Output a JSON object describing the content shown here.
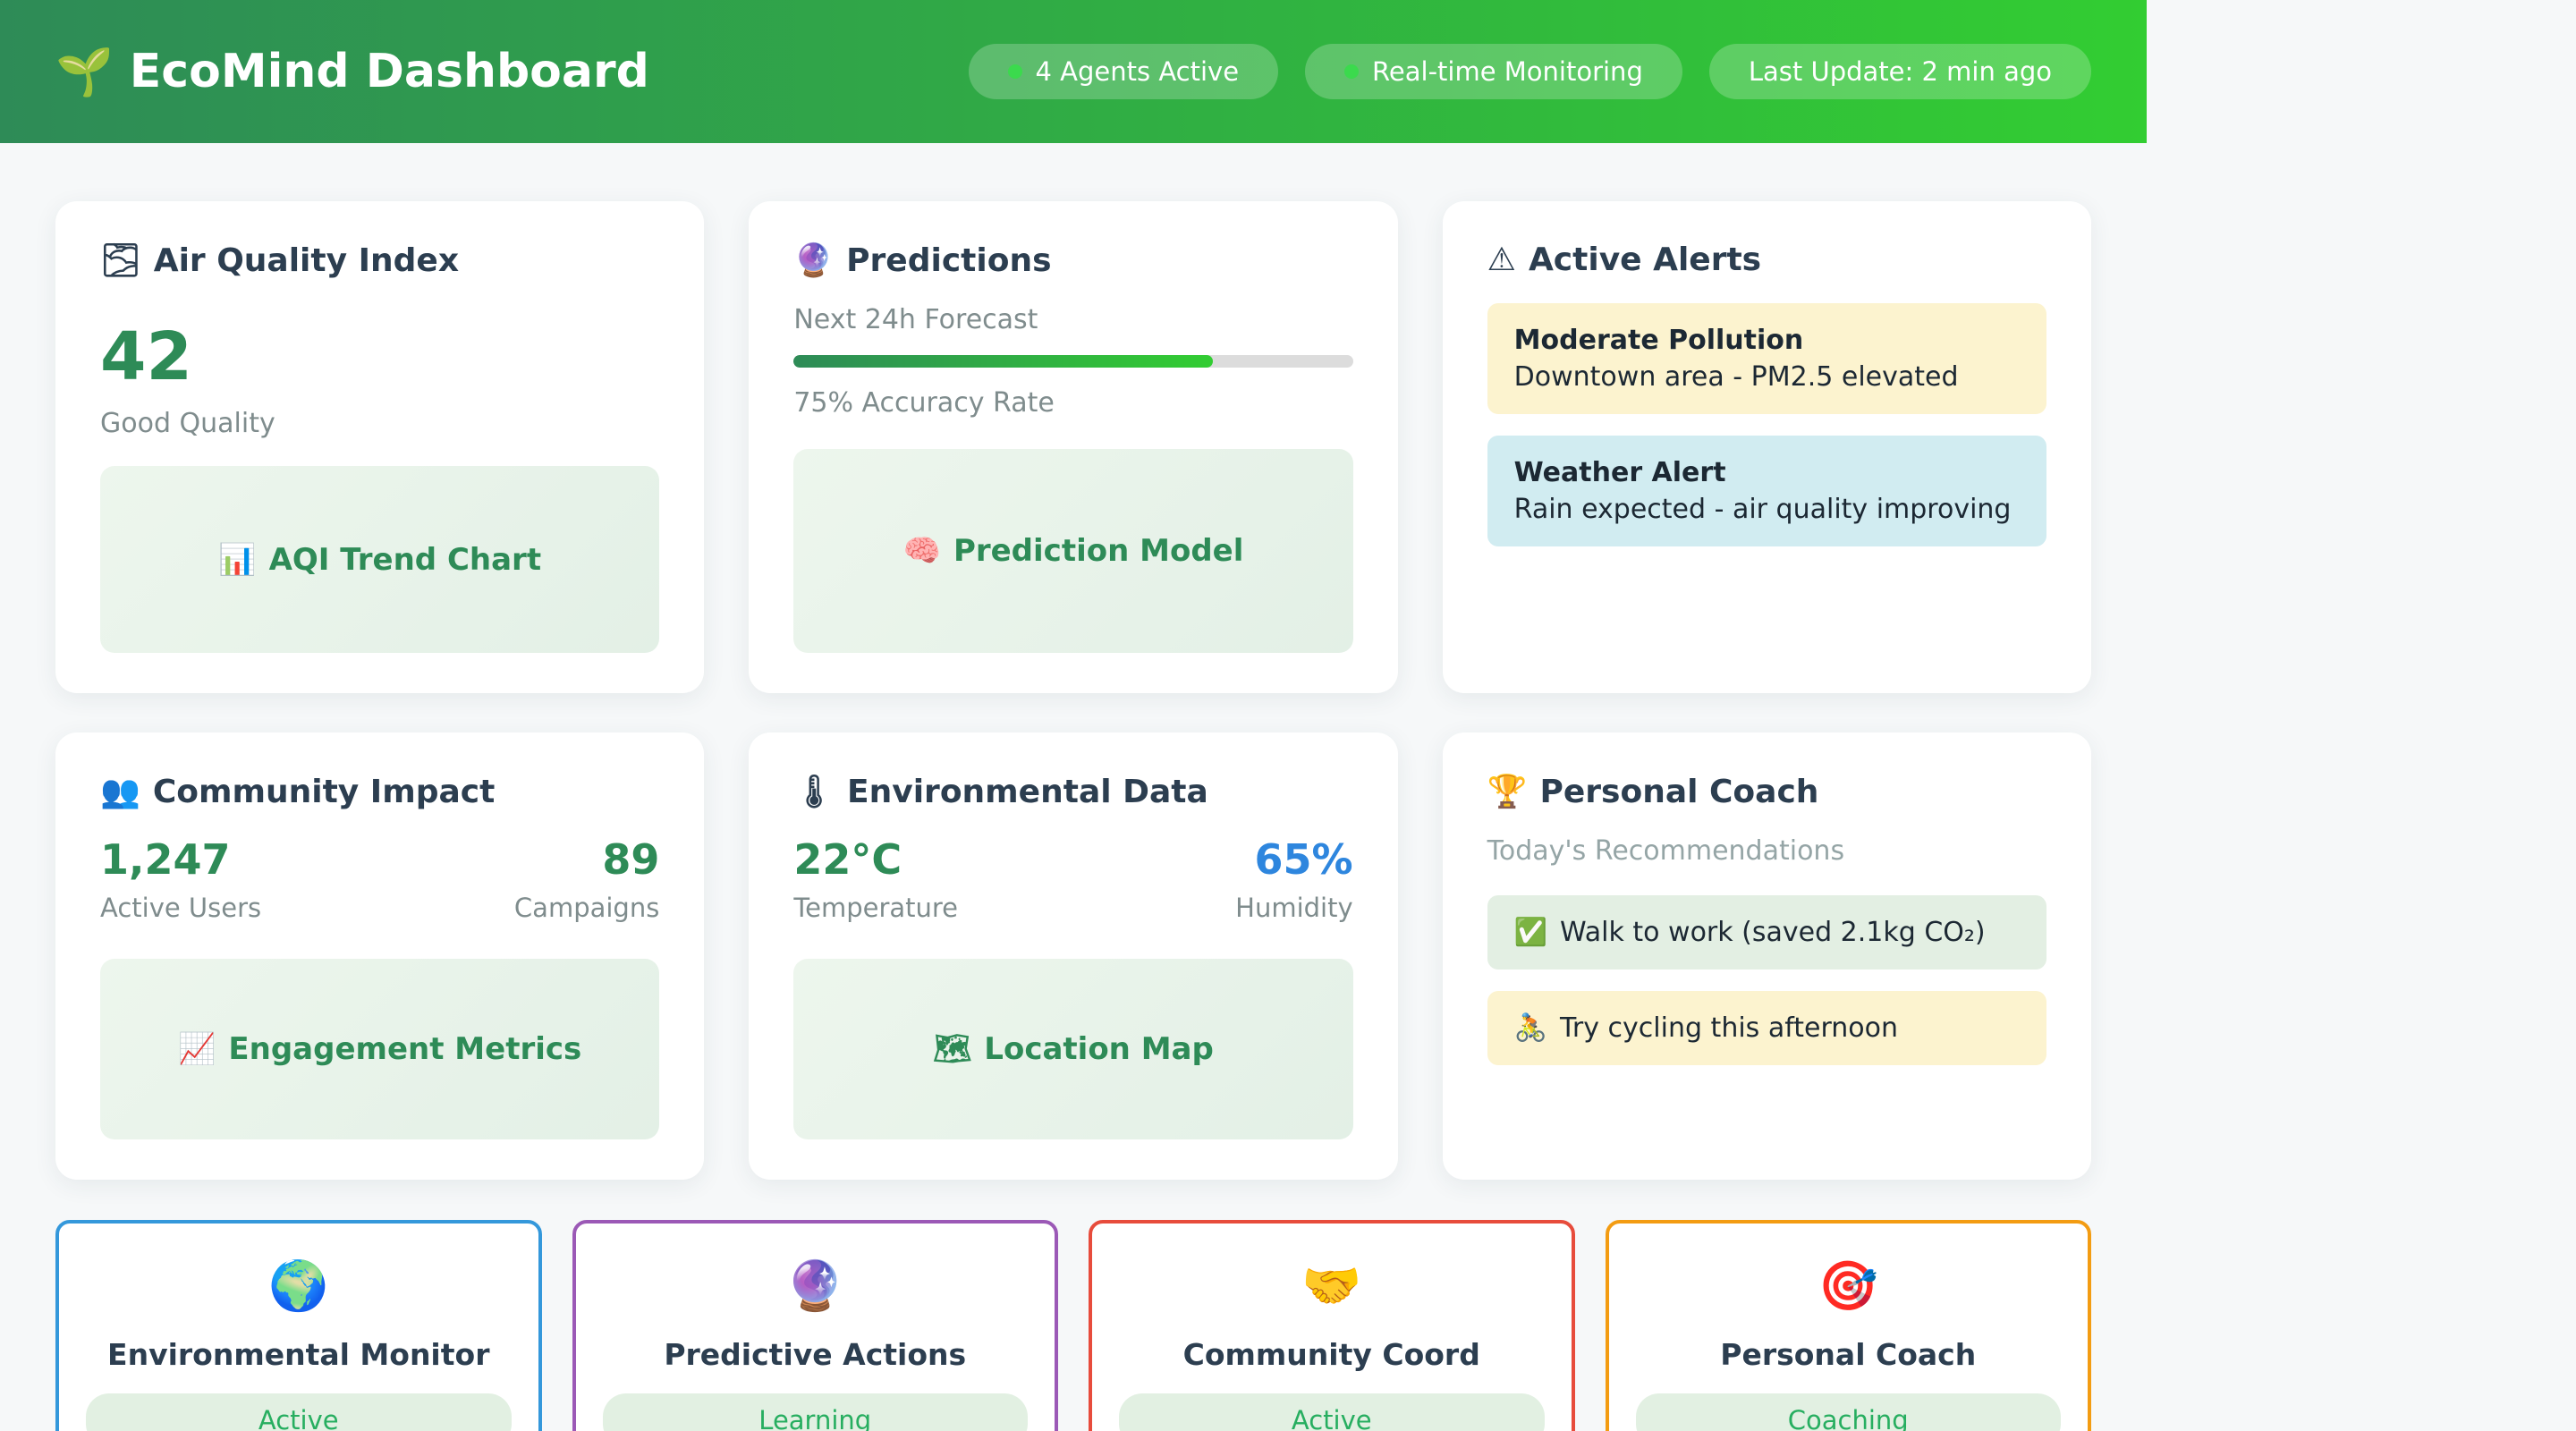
{
  "header": {
    "icon": "🌱",
    "title": "EcoMind Dashboard",
    "badges": [
      {
        "label": "4 Agents Active",
        "has_dot": true
      },
      {
        "label": "Real-time Monitoring",
        "has_dot": true
      },
      {
        "label": "Last Update: 2 min ago",
        "has_dot": false
      }
    ]
  },
  "cards": {
    "air_quality": {
      "icon": "🌫",
      "title": "Air Quality Index",
      "value": "42",
      "status": "Good Quality",
      "placeholder_icon": "📊",
      "placeholder_label": "AQI Trend Chart"
    },
    "predictions": {
      "icon": "🔮",
      "title": "Predictions",
      "forecast_label": "Next 24h Forecast",
      "progress_pct": 75,
      "progress_width": "75%",
      "accuracy_label": "75% Accuracy Rate",
      "placeholder_icon": "🧠",
      "placeholder_label": "Prediction Model"
    },
    "alerts": {
      "icon": "⚠",
      "title": "Active Alerts",
      "items": [
        {
          "title": "Moderate Pollution",
          "desc": "Downtown area - PM2.5 elevated",
          "type": "warning"
        },
        {
          "title": "Weather Alert",
          "desc": "Rain expected - air quality improving",
          "type": "info"
        }
      ]
    },
    "community": {
      "icon": "👥",
      "title": "Community Impact",
      "stats": [
        {
          "value": "1,247",
          "label": "Active Users",
          "value_color": "#2e8b57"
        },
        {
          "value": "89",
          "label": "Campaigns",
          "value_color": "#2e8b57"
        }
      ],
      "placeholder_icon": "📈",
      "placeholder_label": "Engagement Metrics"
    },
    "environmental": {
      "icon": "🌡",
      "title": "Environmental Data",
      "stats": [
        {
          "value": "22°C",
          "label": "Temperature",
          "value_color": "#2e8b57"
        },
        {
          "value": "65%",
          "label": "Humidity",
          "value_color": "#2e86de"
        }
      ],
      "placeholder_icon": "🗺",
      "placeholder_label": "Location Map"
    },
    "coach": {
      "icon": "🏆",
      "title": "Personal Coach",
      "subtitle": "Today's Recommendations",
      "recommendations": [
        {
          "icon": "✅",
          "text": "Walk to work (saved 2.1kg CO₂)",
          "type": "done"
        },
        {
          "icon": "🚴",
          "text": "Try cycling this afternoon",
          "type": "suggestion"
        }
      ]
    }
  },
  "agents": [
    {
      "icon": "🌍",
      "name": "Environmental Monitor",
      "status": "Active",
      "accent": "#3498db"
    },
    {
      "icon": "🔮",
      "name": "Predictive Actions",
      "status": "Learning",
      "accent": "#9b59b6"
    },
    {
      "icon": "🤝",
      "name": "Community Coord",
      "status": "Active",
      "accent": "#e74c3c"
    },
    {
      "icon": "🎯",
      "name": "Personal Coach",
      "status": "Coaching",
      "accent": "#f39c12"
    }
  ],
  "colors": {
    "header_gradient_start": "#2E8B57",
    "header_gradient_end": "#32CD32",
    "value_green": "#2e8b57",
    "humidity_blue": "#2e86de",
    "status_pill_green": "#27ae60",
    "warning_bg": "#fcf3cf",
    "info_bg": "#d1ecf1",
    "page_bg": "#f6f8f9",
    "title_navy": "#2c3e50",
    "badge_dot_green": "#3bda4d"
  }
}
